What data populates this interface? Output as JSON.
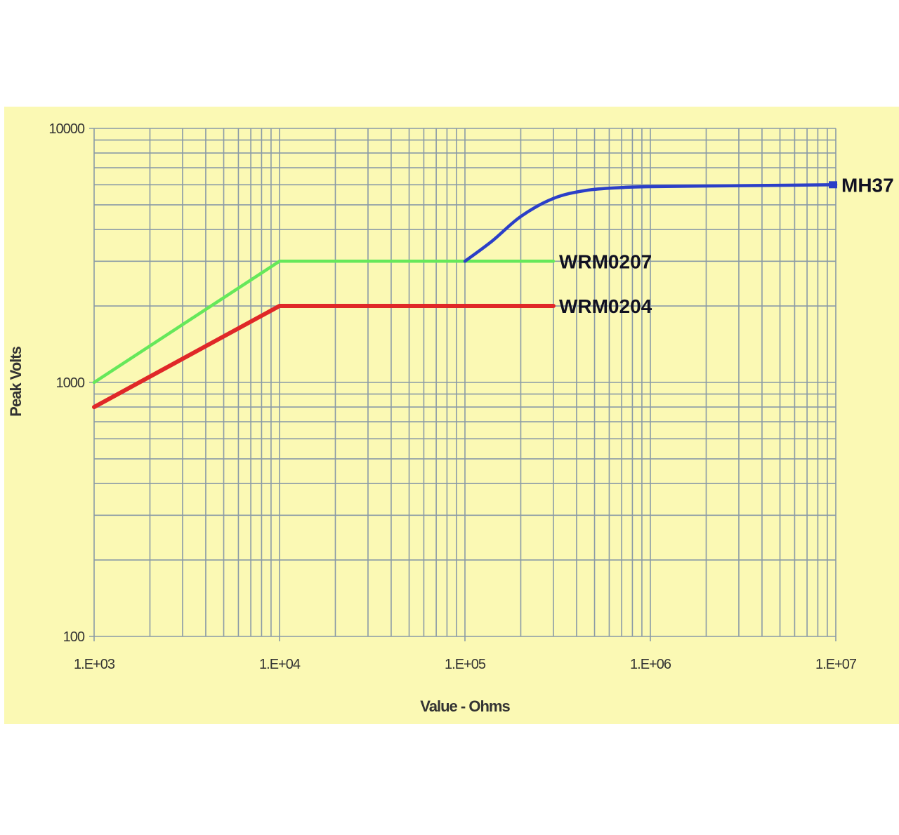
{
  "colors": {
    "panel_background": "#fbf9b4",
    "grid": "#8a9aa6",
    "WRM0207": "#66e85a",
    "WRM0204": "#e02828",
    "MH37": "#2b3fc8"
  },
  "chart_data": {
    "type": "line",
    "title": "",
    "xlabel": "Value - Ohms",
    "ylabel": "Peak Volts",
    "x_scale": "log",
    "y_scale": "log",
    "xlim": [
      1000,
      10000000
    ],
    "ylim": [
      100,
      10000
    ],
    "grid": true,
    "x_ticks": [
      {
        "value": 1000,
        "label": "1.E+03"
      },
      {
        "value": 10000,
        "label": "1.E+04"
      },
      {
        "value": 100000,
        "label": "1.E+05"
      },
      {
        "value": 1000000,
        "label": "1.E+06"
      },
      {
        "value": 10000000,
        "label": "1.E+07"
      }
    ],
    "y_ticks": [
      {
        "value": 100,
        "label": "100"
      },
      {
        "value": 1000,
        "label": "1000"
      },
      {
        "value": 10000,
        "label": "10000"
      }
    ],
    "series": [
      {
        "name": "WRM0207",
        "color": "#66e85a",
        "x": [
          1000,
          10000,
          300000
        ],
        "y": [
          1000,
          3000,
          3000
        ]
      },
      {
        "name": "WRM0204",
        "color": "#e02828",
        "x": [
          1000,
          10000,
          300000
        ],
        "y": [
          800,
          2000,
          2000
        ]
      },
      {
        "name": "MH37",
        "color": "#2b3fc8",
        "x": [
          100000,
          140000,
          200000,
          300000,
          450000,
          700000,
          1000000,
          3000000,
          10000000
        ],
        "y": [
          3000,
          3600,
          4500,
          5300,
          5700,
          5850,
          5900,
          5950,
          6000
        ]
      }
    ]
  }
}
